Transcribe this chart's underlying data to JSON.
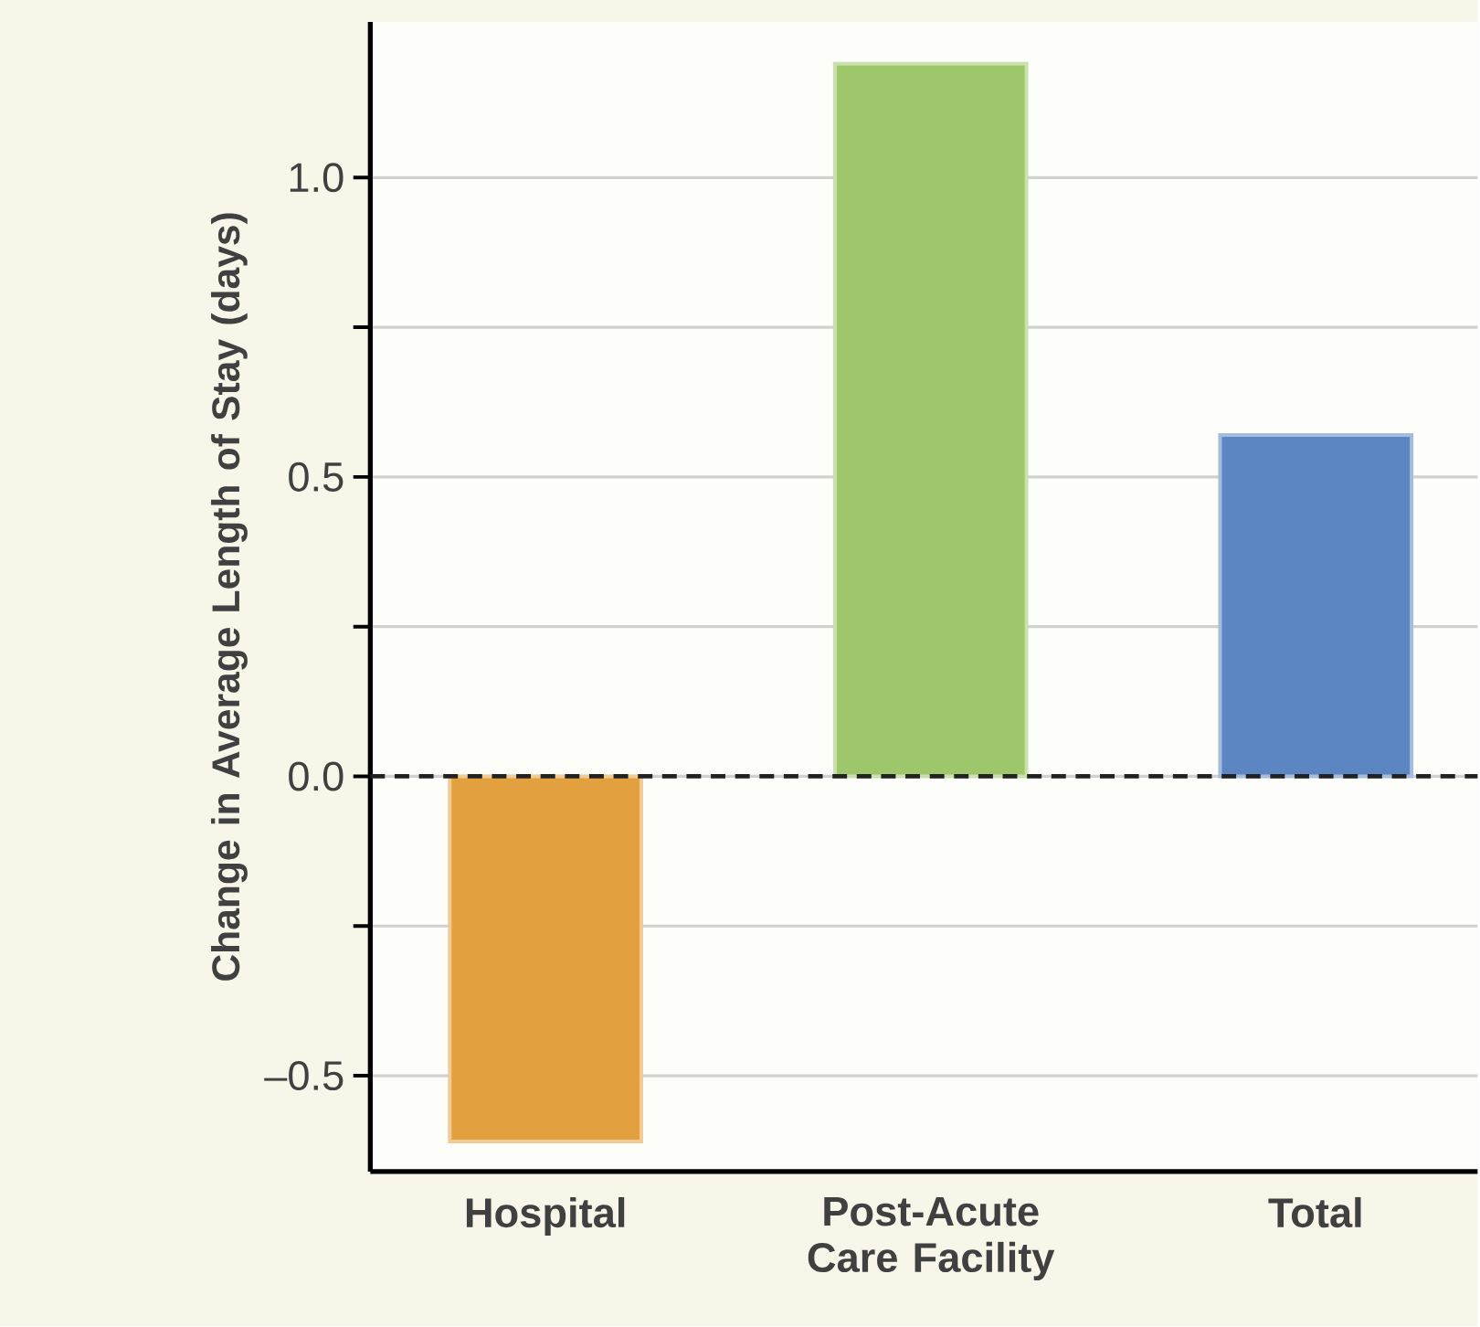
{
  "chart_data": {
    "type": "bar",
    "ylabel": "Change in Average Length of Stay (days)",
    "categories": [
      "Hospital",
      "Post-Acute Care Facility",
      "Total"
    ],
    "values": [
      -0.61,
      1.19,
      0.57
    ],
    "colors": [
      "#e3a03f",
      "#9ec66b",
      "#5c86c2"
    ],
    "ylim": [
      -0.66,
      1.26
    ],
    "yticks": [
      {
        "value": -0.5,
        "label": "–0.5"
      },
      {
        "value": -0.25,
        "label": null
      },
      {
        "value": 0,
        "label": "0.0"
      },
      {
        "value": 0.25,
        "label": null
      },
      {
        "value": 0.5,
        "label": "0.5"
      },
      {
        "value": 0.75,
        "label": null
      },
      {
        "value": 1.0,
        "label": "1.0"
      }
    ],
    "grid": "y",
    "ref_lines": [
      {
        "axis": "y",
        "value": 0,
        "line_style": "dashed",
        "color": "#222222"
      }
    ]
  }
}
